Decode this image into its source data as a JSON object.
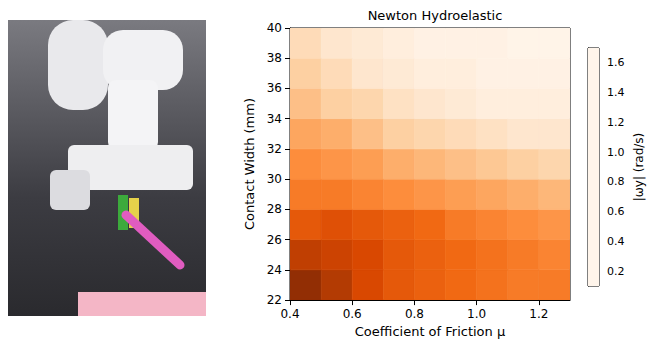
{
  "chart_data": {
    "type": "heatmap",
    "title": "Newton Hydroelastic",
    "x_label": "Coefficient of Friction μ",
    "y_label": "Contact Width (mm)",
    "x": [
      0.45,
      0.55,
      0.65,
      0.75,
      0.85,
      0.95,
      1.05,
      1.15,
      1.25
    ],
    "y": [
      23,
      25,
      27,
      29,
      31,
      33,
      35,
      37,
      39
    ],
    "values": [
      [
        1.6,
        1.45,
        1.3,
        1.2,
        1.15,
        1.1,
        1.05,
        1.0,
        1.0
      ],
      [
        1.4,
        1.35,
        1.3,
        1.2,
        1.15,
        1.1,
        1.05,
        1.0,
        0.95
      ],
      [
        1.2,
        1.25,
        1.2,
        1.15,
        1.1,
        1.0,
        0.95,
        0.9,
        0.85
      ],
      [
        1.0,
        1.0,
        0.95,
        0.9,
        0.85,
        0.8,
        0.75,
        0.7,
        0.65
      ],
      [
        0.9,
        0.85,
        0.8,
        0.7,
        0.65,
        0.6,
        0.55,
        0.5,
        0.45
      ],
      [
        0.75,
        0.7,
        0.6,
        0.5,
        0.45,
        0.4,
        0.35,
        0.3,
        0.3
      ],
      [
        0.6,
        0.5,
        0.45,
        0.35,
        0.3,
        0.25,
        0.2,
        0.2,
        0.2
      ],
      [
        0.5,
        0.4,
        0.3,
        0.25,
        0.2,
        0.2,
        0.15,
        0.15,
        0.15
      ],
      [
        0.4,
        0.3,
        0.25,
        0.2,
        0.15,
        0.15,
        0.15,
        0.12,
        0.12
      ]
    ],
    "xlim": [
      0.4,
      1.3
    ],
    "ylim": [
      22,
      40
    ],
    "xticks": [
      0.4,
      0.6,
      0.8,
      {
        "value": 1,
        "label": "1.0"
      },
      1.2
    ],
    "yticks": [
      22,
      24,
      26,
      28,
      30,
      32,
      34,
      36,
      38,
      40
    ],
    "colorbar": {
      "label": "|ωy| (rad/s)",
      "range": [
        0.1,
        1.7
      ],
      "ticks": [
        0.2,
        0.4,
        0.6,
        0.8,
        {
          "value": 1,
          "label": "1.0"
        },
        1.2,
        1.4,
        1.6
      ]
    }
  }
}
